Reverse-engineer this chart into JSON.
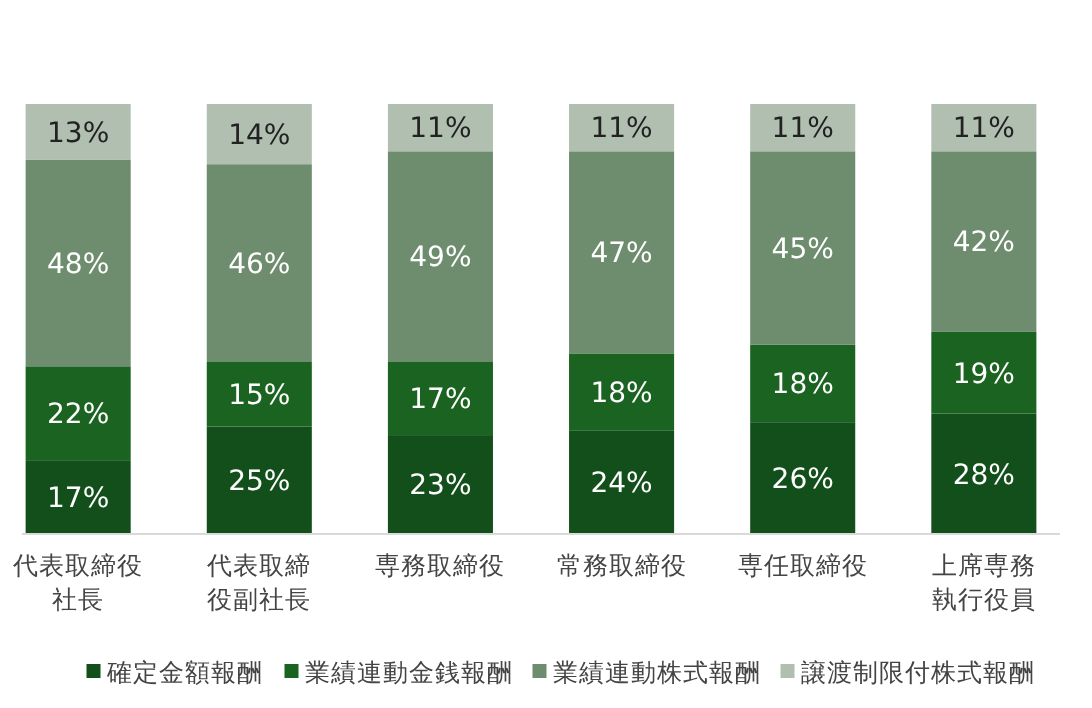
{
  "chart_data": {
    "type": "bar",
    "stacked": true,
    "legend": "bottom",
    "categories": [
      "代表取締役社長",
      "代表取締役副社長",
      "専務取締役",
      "常務取締役",
      "専任取締役",
      "上席専務執行役員"
    ],
    "series": [
      {
        "name": "確定金額報酬",
        "color": "#134f1b",
        "values": [
          17,
          25,
          23,
          24,
          26,
          28
        ],
        "value_labels": [
          "17%",
          "25%",
          "23%",
          "24%",
          "26%",
          "28%"
        ]
      },
      {
        "name": "業績連動金銭報酬",
        "color": "#1b6321",
        "values": [
          22,
          15,
          17,
          18,
          18,
          19
        ],
        "value_labels": [
          "22%",
          "15%",
          "17%",
          "18%",
          "18%",
          "19%"
        ]
      },
      {
        "name": "業績連動株式報酬",
        "color": "#6e8c6e",
        "values": [
          48,
          46,
          49,
          47,
          45,
          42
        ],
        "value_labels": [
          "48%",
          "46%",
          "49%",
          "47%",
          "45%",
          "42%"
        ]
      },
      {
        "name": "譲渡制限付株式報酬",
        "color": "#b0bfb0",
        "values": [
          13,
          14,
          11,
          11,
          11,
          11
        ],
        "value_labels": [
          "13%",
          "14%",
          "11%",
          "11%",
          "11%",
          "11%"
        ]
      }
    ]
  }
}
